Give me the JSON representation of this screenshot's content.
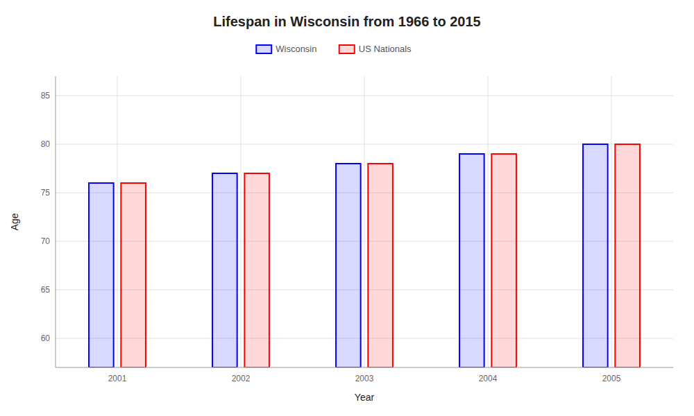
{
  "chart_data": {
    "type": "bar",
    "title": "Lifespan in Wisconsin from 1966 to 2015",
    "x_label": "Year",
    "y_label": "Age",
    "categories": [
      "2001",
      "2002",
      "2003",
      "2004",
      "2005"
    ],
    "series": [
      {
        "name": "Wisconsin",
        "color": "#0000ff",
        "values": [
          76,
          77,
          78,
          79,
          80
        ]
      },
      {
        "name": "US Nationals",
        "color": "#ff0000",
        "values": [
          76,
          77,
          78,
          79,
          80
        ]
      }
    ],
    "ylim": [
      57,
      87
    ],
    "yticks": [
      60,
      65,
      70,
      75,
      80,
      85
    ],
    "grid": true,
    "legend": "top"
  }
}
